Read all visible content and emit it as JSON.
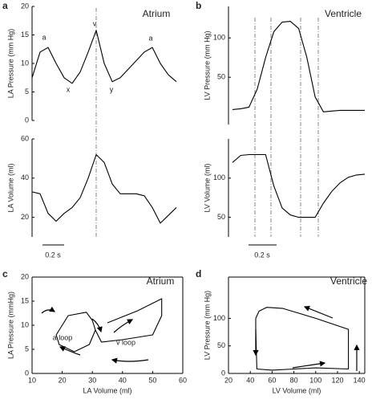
{
  "chart_data": [
    {
      "type": "line",
      "panel_label": "a",
      "title": "Atrium",
      "y_label": "LA Pressure (mm Hg)",
      "color": "#000000",
      "values": [
        7.5,
        12,
        12.8,
        10,
        7.5,
        6.5,
        8.5,
        12,
        15.8,
        10,
        6.8,
        7.5,
        9,
        10.5,
        12,
        12.8,
        10,
        8,
        6.8
      ],
      "ylim": [
        0,
        20
      ],
      "yticks": [
        0,
        5,
        10,
        15,
        20
      ],
      "annotations": [
        "a",
        "x",
        "v",
        "y",
        "a"
      ]
    },
    {
      "type": "line",
      "y_label": "LA Volume (ml)",
      "color": "#000000",
      "values": [
        33,
        32,
        22,
        18,
        22,
        25,
        30,
        40,
        52,
        48,
        37,
        32,
        32,
        32,
        31,
        25,
        17,
        21,
        25
      ],
      "ylim": [
        10,
        60
      ],
      "yticks": [
        20,
        40,
        60
      ],
      "scale_label": "0.2 s"
    },
    {
      "type": "line",
      "panel_label": "b",
      "title": "Ventricle",
      "y_label": "LV Pressure (mm Hg)",
      "color": "#000000",
      "values": [
        9,
        10,
        12,
        35,
        75,
        108,
        120,
        121,
        112,
        75,
        25,
        6,
        7,
        8,
        8,
        8,
        8
      ],
      "ylim": [
        -10,
        140
      ],
      "yticks": [
        50,
        100
      ]
    },
    {
      "type": "line",
      "y_label": "LV Volume (ml)",
      "color": "#000000",
      "values": [
        120,
        129,
        130,
        130,
        130,
        90,
        62,
        53,
        50,
        50,
        50,
        68,
        83,
        94,
        101,
        104,
        105
      ],
      "ylim": [
        25,
        150
      ],
      "yticks": [
        50,
        100
      ],
      "scale_label": "0.2 s"
    },
    {
      "type": "loop",
      "panel_label": "c",
      "title": "Atrium",
      "x_label": "LA Volume (ml)",
      "y_label": "LA Pressure (mmHg)",
      "color": "#000000",
      "x": [
        20,
        22,
        28,
        30,
        31,
        29,
        24,
        19,
        18,
        20,
        31,
        35,
        45,
        53,
        53,
        50,
        40,
        33,
        31
      ],
      "values": [
        10,
        12,
        12.7,
        11,
        9,
        6,
        4.5,
        6,
        8,
        10,
        null,
        10.5,
        13,
        15.5,
        12,
        8,
        7,
        6.5,
        9
      ],
      "xlim": [
        10,
        60
      ],
      "xticks": [
        10,
        20,
        30,
        40,
        50,
        60
      ],
      "ylim": [
        0,
        20
      ],
      "yticks": [
        0,
        5,
        10,
        15,
        20
      ],
      "annotations": [
        "a loop",
        "v loop"
      ]
    },
    {
      "type": "loop",
      "panel_label": "d",
      "title": "Ventricle",
      "x_label": "LV Volume (ml)",
      "y_label": "LV Pressure (mm Hg)",
      "color": "#000000",
      "x": [
        45,
        48,
        55,
        70,
        100,
        130,
        130,
        130,
        100,
        80,
        60,
        46,
        45,
        45
      ],
      "values": [
        100,
        113,
        120,
        118,
        100,
        80,
        55,
        8,
        10,
        8,
        6,
        8,
        80,
        100
      ],
      "xlim": [
        20,
        145
      ],
      "xticks": [
        20,
        40,
        60,
        80,
        100,
        120,
        140
      ],
      "ylim": [
        0,
        175
      ],
      "yticks": [
        0,
        50,
        100
      ]
    }
  ]
}
